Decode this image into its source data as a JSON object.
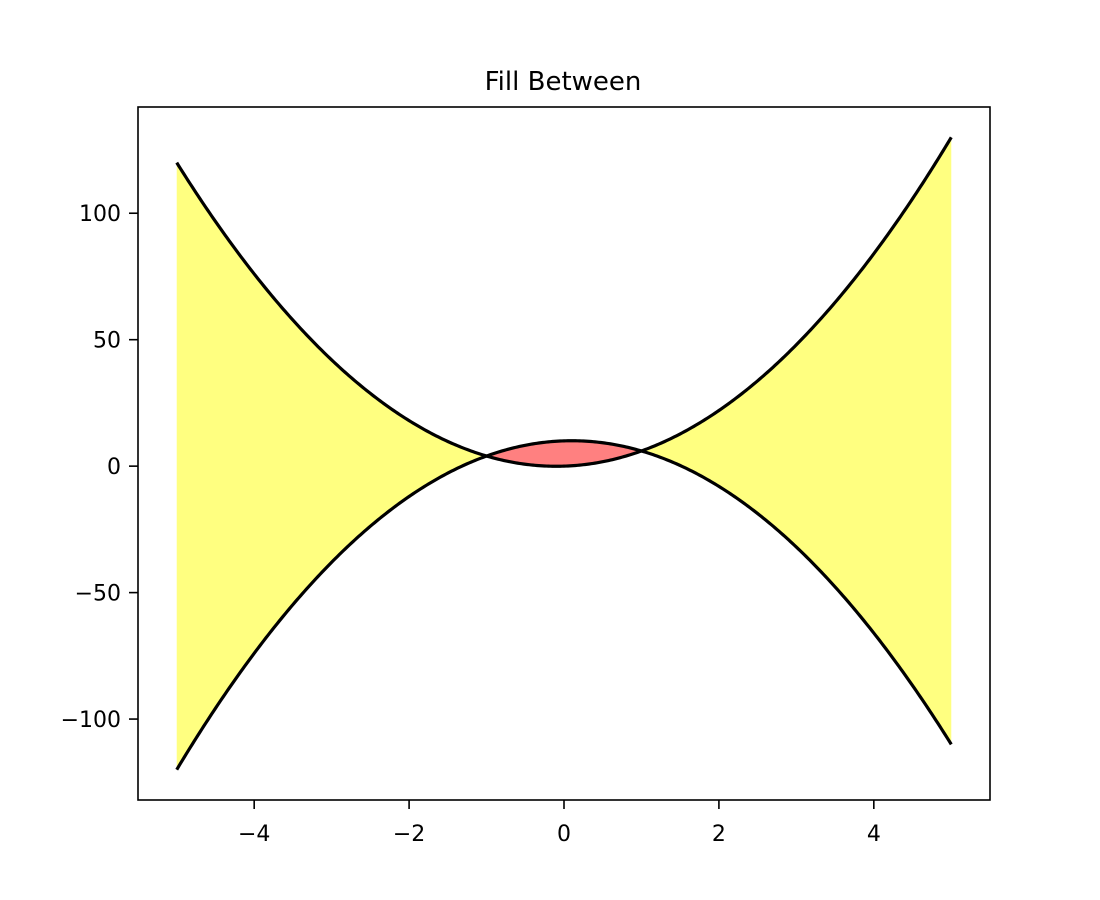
{
  "chart_data": {
    "type": "area",
    "title": "Fill Between",
    "xlabel": "",
    "ylabel": "",
    "xlim": [
      -5.5,
      5.5
    ],
    "ylim": [
      -132,
      142
    ],
    "x_ticks": [
      -4,
      -2,
      0,
      2,
      4
    ],
    "x_tick_labels": [
      "−4",
      "−2",
      "0",
      "2",
      "4"
    ],
    "y_ticks": [
      -100,
      -50,
      0,
      50,
      100
    ],
    "y_tick_labels": [
      "−100",
      "−50",
      "0",
      "50",
      "100"
    ],
    "grid": false,
    "legend": "none",
    "x_range": [
      -5,
      5
    ],
    "series": [
      {
        "expression": "5x² + x",
        "color": "#000000",
        "x": [
          -5,
          -4,
          -3,
          -2,
          -1,
          0,
          1,
          2,
          3,
          4,
          5
        ],
        "values": [
          120,
          76,
          42,
          18,
          4,
          0,
          6,
          22,
          48,
          84,
          130
        ]
      },
      {
        "expression": "-5x² + x + 10",
        "color": "#000000",
        "x": [
          -5,
          -4,
          -3,
          -2,
          -1,
          0,
          1,
          2,
          3,
          4,
          5
        ],
        "values": [
          -120,
          -74,
          -38,
          -12,
          4,
          10,
          6,
          -8,
          -32,
          -66,
          -110
        ]
      }
    ],
    "fills": [
      {
        "where": "series 1 above series 2",
        "color": "#ffff80"
      },
      {
        "where": "series 1 below series 2",
        "color": "#ff8080"
      }
    ]
  }
}
